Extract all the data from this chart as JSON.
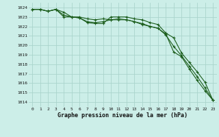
{
  "title": "Graphe pression niveau de la mer (hPa)",
  "background_color": "#cceee8",
  "grid_color": "#aad4cc",
  "line_color": "#1a5c1a",
  "x_ticks": [
    0,
    1,
    2,
    3,
    4,
    5,
    6,
    7,
    8,
    9,
    10,
    11,
    12,
    13,
    14,
    15,
    16,
    17,
    18,
    19,
    20,
    21,
    22,
    23
  ],
  "ylim": [
    1013.5,
    1024.5
  ],
  "yticks": [
    1014,
    1015,
    1016,
    1017,
    1018,
    1019,
    1020,
    1021,
    1022,
    1023,
    1024
  ],
  "line1": [
    1023.8,
    1023.8,
    1023.6,
    1023.8,
    1023.5,
    1023.0,
    1023.0,
    1022.8,
    1022.7,
    1022.8,
    1022.7,
    1022.8,
    1022.7,
    1022.5,
    1022.2,
    1022.0,
    1021.8,
    1021.2,
    1019.3,
    1018.8,
    1017.5,
    1016.3,
    1015.2,
    1014.2
  ],
  "line2": [
    1023.8,
    1023.8,
    1023.6,
    1023.8,
    1023.0,
    1023.0,
    1022.9,
    1022.4,
    1022.3,
    1022.3,
    1023.0,
    1023.0,
    1023.0,
    1022.8,
    1022.7,
    1022.4,
    1022.2,
    1021.3,
    1020.8,
    1019.2,
    1018.2,
    1017.2,
    1016.1,
    1014.2
  ],
  "line3": [
    1023.8,
    1023.8,
    1023.6,
    1023.8,
    1023.2,
    1023.0,
    1022.9,
    1022.5,
    1022.4,
    1022.5,
    1022.7,
    1022.7,
    1022.7,
    1022.5,
    1022.3,
    1022.0,
    1021.8,
    1021.1,
    1019.9,
    1018.9,
    1017.8,
    1016.7,
    1015.5,
    1014.2
  ]
}
